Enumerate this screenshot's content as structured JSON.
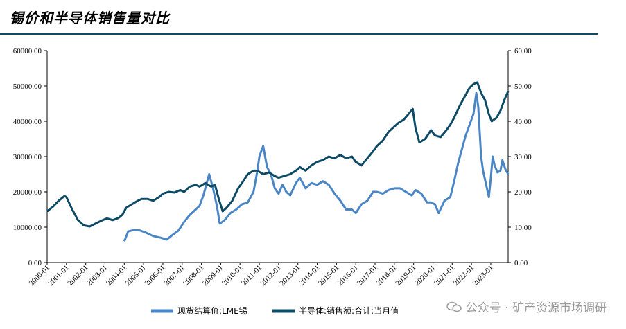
{
  "title": "锡价和半导体销售量对比",
  "watermark": "公众号 · 矿产资源市场调研",
  "chart_data": {
    "type": "line",
    "title": "锡价和半导体销售量对比",
    "x_categories": [
      "2000-01",
      "2001-01",
      "2002-01",
      "2003-01",
      "2004-01",
      "2005-01",
      "2006-01",
      "2007-01",
      "2008-01",
      "2009-01",
      "2010-01",
      "2011-01",
      "2012-01",
      "2013-01",
      "2014-01",
      "2015-01",
      "2016-01",
      "2017-01",
      "2018-01",
      "2019-01",
      "2020-01",
      "2021-01",
      "2022-01",
      "2023-01"
    ],
    "x_range": [
      2000.0,
      2023.9
    ],
    "left_axis": {
      "ylim": [
        0,
        60000
      ],
      "ticks": [
        "0.00",
        "10000.00",
        "20000.00",
        "30000.00",
        "40000.00",
        "50000.00",
        "60000.00"
      ]
    },
    "right_axis": {
      "ylim": [
        0,
        60
      ],
      "ticks": [
        "0.00",
        "10.00",
        "20.00",
        "30.00",
        "40.00",
        "50.00",
        "60.00"
      ]
    },
    "series": [
      {
        "name": "现货结算价:LME锡",
        "axis": "left",
        "color": "#4a86c5",
        "points": [
          [
            2004.0,
            6000
          ],
          [
            2004.2,
            8800
          ],
          [
            2004.5,
            9200
          ],
          [
            2004.8,
            9100
          ],
          [
            2005.1,
            8500
          ],
          [
            2005.5,
            7500
          ],
          [
            2005.9,
            7000
          ],
          [
            2006.2,
            6500
          ],
          [
            2006.5,
            7800
          ],
          [
            2006.8,
            9000
          ],
          [
            2007.1,
            11500
          ],
          [
            2007.4,
            13500
          ],
          [
            2007.7,
            15000
          ],
          [
            2007.9,
            16000
          ],
          [
            2008.1,
            19000
          ],
          [
            2008.3,
            23000
          ],
          [
            2008.4,
            25000
          ],
          [
            2008.6,
            21000
          ],
          [
            2008.8,
            16000
          ],
          [
            2008.95,
            11000
          ],
          [
            2009.2,
            12000
          ],
          [
            2009.5,
            14000
          ],
          [
            2009.8,
            15000
          ],
          [
            2010.1,
            16500
          ],
          [
            2010.4,
            17000
          ],
          [
            2010.7,
            20000
          ],
          [
            2010.9,
            26000
          ],
          [
            2011.0,
            30000
          ],
          [
            2011.2,
            33000
          ],
          [
            2011.4,
            27000
          ],
          [
            2011.6,
            25000
          ],
          [
            2011.8,
            21000
          ],
          [
            2012.0,
            19500
          ],
          [
            2012.2,
            22000
          ],
          [
            2012.4,
            20000
          ],
          [
            2012.6,
            19000
          ],
          [
            2012.9,
            22500
          ],
          [
            2013.1,
            24000
          ],
          [
            2013.4,
            21000
          ],
          [
            2013.7,
            22500
          ],
          [
            2014.0,
            22000
          ],
          [
            2014.3,
            23000
          ],
          [
            2014.6,
            22000
          ],
          [
            2014.9,
            19500
          ],
          [
            2015.2,
            17500
          ],
          [
            2015.5,
            15000
          ],
          [
            2015.8,
            15000
          ],
          [
            2016.0,
            14000
          ],
          [
            2016.3,
            16500
          ],
          [
            2016.6,
            17500
          ],
          [
            2016.9,
            20000
          ],
          [
            2017.1,
            20000
          ],
          [
            2017.4,
            19500
          ],
          [
            2017.7,
            20500
          ],
          [
            2018.0,
            21000
          ],
          [
            2018.3,
            21000
          ],
          [
            2018.6,
            20000
          ],
          [
            2018.9,
            19000
          ],
          [
            2019.1,
            20500
          ],
          [
            2019.4,
            19500
          ],
          [
            2019.7,
            17000
          ],
          [
            2019.9,
            17000
          ],
          [
            2020.1,
            16500
          ],
          [
            2020.3,
            14000
          ],
          [
            2020.6,
            17500
          ],
          [
            2020.9,
            18500
          ],
          [
            2021.1,
            23000
          ],
          [
            2021.3,
            28000
          ],
          [
            2021.5,
            32000
          ],
          [
            2021.7,
            36000
          ],
          [
            2021.9,
            39000
          ],
          [
            2022.1,
            42000
          ],
          [
            2022.25,
            48000
          ],
          [
            2022.35,
            44000
          ],
          [
            2022.5,
            30000
          ],
          [
            2022.6,
            26000
          ],
          [
            2022.8,
            21000
          ],
          [
            2022.9,
            18500
          ],
          [
            2023.0,
            24000
          ],
          [
            2023.1,
            30000
          ],
          [
            2023.2,
            27500
          ],
          [
            2023.35,
            25500
          ],
          [
            2023.5,
            26000
          ],
          [
            2023.6,
            29000
          ],
          [
            2023.75,
            26500
          ],
          [
            2023.9,
            25000
          ]
        ]
      },
      {
        "name": "半导体:销售额:合计:当月值",
        "axis": "right",
        "color": "#0d4a66",
        "points": [
          [
            2000.0,
            14.5
          ],
          [
            2000.3,
            15.8
          ],
          [
            2000.6,
            17.5
          ],
          [
            2000.9,
            18.8
          ],
          [
            2001.0,
            18.5
          ],
          [
            2001.3,
            15.0
          ],
          [
            2001.6,
            12.0
          ],
          [
            2001.9,
            10.5
          ],
          [
            2002.2,
            10.2
          ],
          [
            2002.5,
            11.0
          ],
          [
            2002.8,
            11.8
          ],
          [
            2003.1,
            12.5
          ],
          [
            2003.4,
            12.0
          ],
          [
            2003.7,
            12.6
          ],
          [
            2003.9,
            13.5
          ],
          [
            2004.1,
            15.5
          ],
          [
            2004.4,
            16.5
          ],
          [
            2004.7,
            17.5
          ],
          [
            2004.9,
            18.0
          ],
          [
            2005.2,
            18.0
          ],
          [
            2005.5,
            17.5
          ],
          [
            2005.8,
            18.5
          ],
          [
            2006.0,
            19.5
          ],
          [
            2006.3,
            20.0
          ],
          [
            2006.6,
            19.8
          ],
          [
            2006.9,
            20.5
          ],
          [
            2007.1,
            20.0
          ],
          [
            2007.4,
            21.5
          ],
          [
            2007.7,
            22.0
          ],
          [
            2007.9,
            21.5
          ],
          [
            2008.2,
            22.5
          ],
          [
            2008.5,
            21.5
          ],
          [
            2008.7,
            22.0
          ],
          [
            2008.9,
            18.0
          ],
          [
            2009.1,
            14.5
          ],
          [
            2009.3,
            15.5
          ],
          [
            2009.6,
            17.5
          ],
          [
            2009.9,
            21.0
          ],
          [
            2010.1,
            22.5
          ],
          [
            2010.4,
            25.0
          ],
          [
            2010.7,
            26.0
          ],
          [
            2010.9,
            26.0
          ],
          [
            2011.2,
            25.0
          ],
          [
            2011.5,
            25.5
          ],
          [
            2011.8,
            24.5
          ],
          [
            2012.0,
            24.0
          ],
          [
            2012.3,
            24.5
          ],
          [
            2012.6,
            25.0
          ],
          [
            2012.9,
            26.0
          ],
          [
            2013.1,
            27.0
          ],
          [
            2013.4,
            26.0
          ],
          [
            2013.7,
            27.5
          ],
          [
            2014.0,
            28.5
          ],
          [
            2014.3,
            29.0
          ],
          [
            2014.6,
            30.0
          ],
          [
            2014.9,
            29.5
          ],
          [
            2015.2,
            30.5
          ],
          [
            2015.5,
            29.5
          ],
          [
            2015.8,
            30.0
          ],
          [
            2016.0,
            28.5
          ],
          [
            2016.3,
            27.5
          ],
          [
            2016.6,
            29.5
          ],
          [
            2016.9,
            31.5
          ],
          [
            2017.1,
            33.0
          ],
          [
            2017.4,
            34.5
          ],
          [
            2017.7,
            37.0
          ],
          [
            2017.9,
            38.0
          ],
          [
            2018.2,
            39.5
          ],
          [
            2018.5,
            40.5
          ],
          [
            2018.8,
            42.5
          ],
          [
            2018.95,
            43.5
          ],
          [
            2019.1,
            38.0
          ],
          [
            2019.3,
            34.0
          ],
          [
            2019.6,
            35.0
          ],
          [
            2019.9,
            37.5
          ],
          [
            2020.1,
            36.0
          ],
          [
            2020.4,
            35.5
          ],
          [
            2020.7,
            37.5
          ],
          [
            2020.9,
            39.0
          ],
          [
            2021.1,
            41.0
          ],
          [
            2021.4,
            44.5
          ],
          [
            2021.7,
            47.5
          ],
          [
            2021.9,
            49.5
          ],
          [
            2022.1,
            50.5
          ],
          [
            2022.3,
            51.0
          ],
          [
            2022.5,
            48.0
          ],
          [
            2022.7,
            46.0
          ],
          [
            2022.9,
            42.0
          ],
          [
            2023.05,
            40.0
          ],
          [
            2023.3,
            41.0
          ],
          [
            2023.5,
            43.0
          ],
          [
            2023.7,
            46.0
          ],
          [
            2023.9,
            48.5
          ]
        ]
      }
    ],
    "legend": [
      "现货结算价:LME锡",
      "半导体:销售额:合计:当月值"
    ],
    "legend_position": "bottom"
  }
}
